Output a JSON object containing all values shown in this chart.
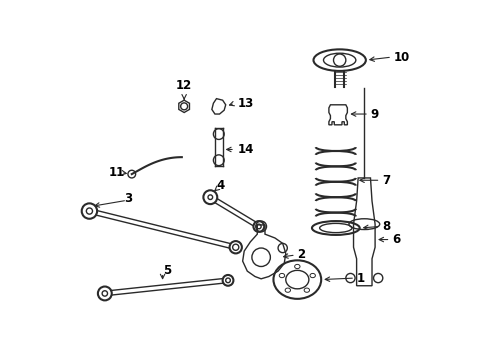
{
  "bg_color": "#ffffff",
  "lc": "#2a2a2a",
  "fig_width": 4.9,
  "fig_height": 3.6,
  "dpi": 100
}
